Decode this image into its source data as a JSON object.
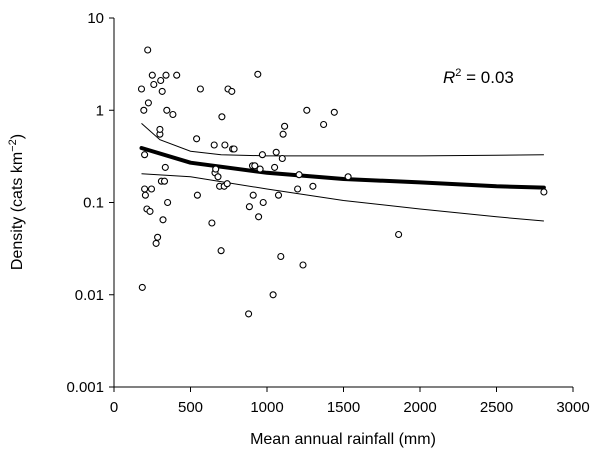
{
  "chart_data": {
    "type": "scatter",
    "title": "",
    "xlabel": "Mean annual rainfall (mm)",
    "ylabel": "Density (cats km−2)",
    "ylabel_parts": {
      "base": "Density (cats km",
      "sup": "−2",
      "close": ")"
    },
    "xlim": [
      0,
      3000
    ],
    "ylim": [
      0.001,
      10
    ],
    "yscale": "log",
    "grid": false,
    "legend": "none",
    "x_ticks": [
      0,
      500,
      1000,
      1500,
      2000,
      2500,
      3000
    ],
    "y_ticks": [
      0.001,
      0.01,
      0.1,
      1,
      10
    ],
    "y_tick_labels": [
      "0.001",
      "0.01",
      "0.1",
      "1",
      "10"
    ],
    "annotation": {
      "text": "R2 = 0.03",
      "italic": "R",
      "sup": "2",
      "rest": " = 0.03"
    },
    "points": [
      [
        180,
        1.7
      ],
      [
        185,
        0.012
      ],
      [
        195,
        1.0
      ],
      [
        200,
        0.33
      ],
      [
        200,
        0.14
      ],
      [
        205,
        0.12
      ],
      [
        215,
        0.085
      ],
      [
        220,
        4.5
      ],
      [
        225,
        1.2
      ],
      [
        235,
        0.08
      ],
      [
        245,
        0.14
      ],
      [
        250,
        2.4
      ],
      [
        260,
        1.9
      ],
      [
        275,
        0.036
      ],
      [
        285,
        0.042
      ],
      [
        300,
        0.55
      ],
      [
        300,
        0.62
      ],
      [
        305,
        2.1
      ],
      [
        310,
        0.17
      ],
      [
        315,
        1.6
      ],
      [
        320,
        0.065
      ],
      [
        330,
        0.17
      ],
      [
        335,
        0.24
      ],
      [
        340,
        2.4
      ],
      [
        345,
        1.0
      ],
      [
        350,
        0.1
      ],
      [
        385,
        0.9
      ],
      [
        410,
        2.4
      ],
      [
        540,
        0.49
      ],
      [
        545,
        0.12
      ],
      [
        565,
        1.7
      ],
      [
        640,
        0.06
      ],
      [
        655,
        0.42
      ],
      [
        660,
        0.21
      ],
      [
        665,
        0.23
      ],
      [
        680,
        0.19
      ],
      [
        690,
        0.15
      ],
      [
        700,
        0.03
      ],
      [
        705,
        0.85
      ],
      [
        720,
        0.15
      ],
      [
        725,
        0.42
      ],
      [
        740,
        0.16
      ],
      [
        745,
        1.7
      ],
      [
        770,
        1.6
      ],
      [
        775,
        0.38
      ],
      [
        785,
        0.38
      ],
      [
        880,
        0.0062
      ],
      [
        885,
        0.09
      ],
      [
        905,
        0.25
      ],
      [
        910,
        0.12
      ],
      [
        920,
        0.25
      ],
      [
        940,
        2.45
      ],
      [
        945,
        0.07
      ],
      [
        955,
        0.23
      ],
      [
        970,
        0.33
      ],
      [
        975,
        0.1
      ],
      [
        1040,
        0.01
      ],
      [
        1050,
        0.24
      ],
      [
        1060,
        0.35
      ],
      [
        1075,
        0.12
      ],
      [
        1090,
        0.026
      ],
      [
        1100,
        0.3
      ],
      [
        1105,
        0.55
      ],
      [
        1115,
        0.67
      ],
      [
        1200,
        0.14
      ],
      [
        1210,
        0.2
      ],
      [
        1235,
        0.021
      ],
      [
        1260,
        1.0
      ],
      [
        1300,
        0.15
      ],
      [
        1370,
        0.7
      ],
      [
        1440,
        0.95
      ],
      [
        1530,
        0.19
      ],
      [
        1860,
        0.045
      ],
      [
        2810,
        0.13
      ]
    ],
    "series": [
      {
        "role": "fit",
        "x": [
          180,
          500,
          1000,
          1500,
          2000,
          2500,
          2810
        ],
        "y": [
          0.39,
          0.27,
          0.21,
          0.18,
          0.165,
          0.15,
          0.145
        ]
      },
      {
        "role": "upper-ci",
        "x": [
          180,
          300,
          500,
          700,
          1000,
          1500,
          2000,
          2500,
          2810
        ],
        "y": [
          0.72,
          0.48,
          0.36,
          0.33,
          0.32,
          0.32,
          0.32,
          0.325,
          0.33
        ]
      },
      {
        "role": "lower-ci",
        "x": [
          180,
          500,
          1000,
          1500,
          2000,
          2500,
          2810
        ],
        "y": [
          0.205,
          0.19,
          0.14,
          0.105,
          0.085,
          0.07,
          0.063
        ]
      }
    ]
  }
}
